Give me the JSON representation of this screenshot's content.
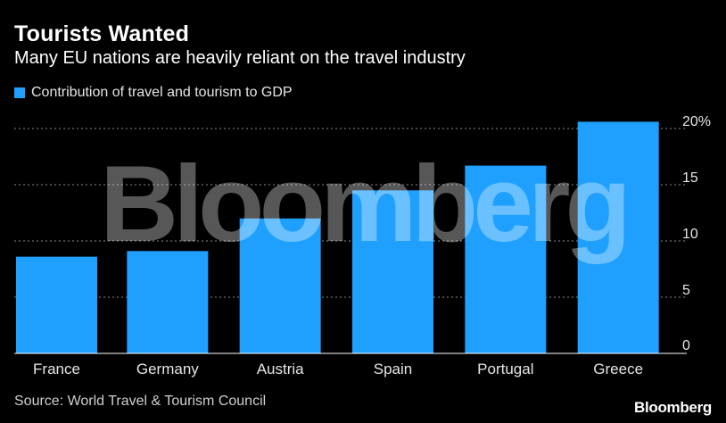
{
  "header": {
    "title": "Tourists Wanted",
    "subtitle": "Many EU nations are heavily reliant on the travel industry"
  },
  "legend": {
    "label": "Contribution of travel and tourism to GDP",
    "color": "#1fa0ff"
  },
  "watermark": "Bloomberg",
  "footer": {
    "source": "Source: World Travel & Tourism Council",
    "brand": "Bloomberg"
  },
  "chart_data": {
    "type": "bar",
    "categories": [
      "France",
      "Germany",
      "Austria",
      "Spain",
      "Portugal",
      "Greece"
    ],
    "series": [
      {
        "name": "Contribution of travel and tourism to GDP",
        "values": [
          8.6,
          9.1,
          12.0,
          14.5,
          16.7,
          20.6
        ],
        "color": "#1fa0ff"
      }
    ],
    "yticks": [
      "0",
      "5",
      "10",
      "15",
      "20%"
    ],
    "ytick_values": [
      0,
      5,
      10,
      15,
      20
    ],
    "ylim": [
      0,
      20
    ],
    "grid": true,
    "legend_position": "top-left",
    "title": "Tourists Wanted",
    "subtitle": "Many EU nations are heavily reliant on the travel industry",
    "xlabel": "",
    "ylabel": ""
  }
}
